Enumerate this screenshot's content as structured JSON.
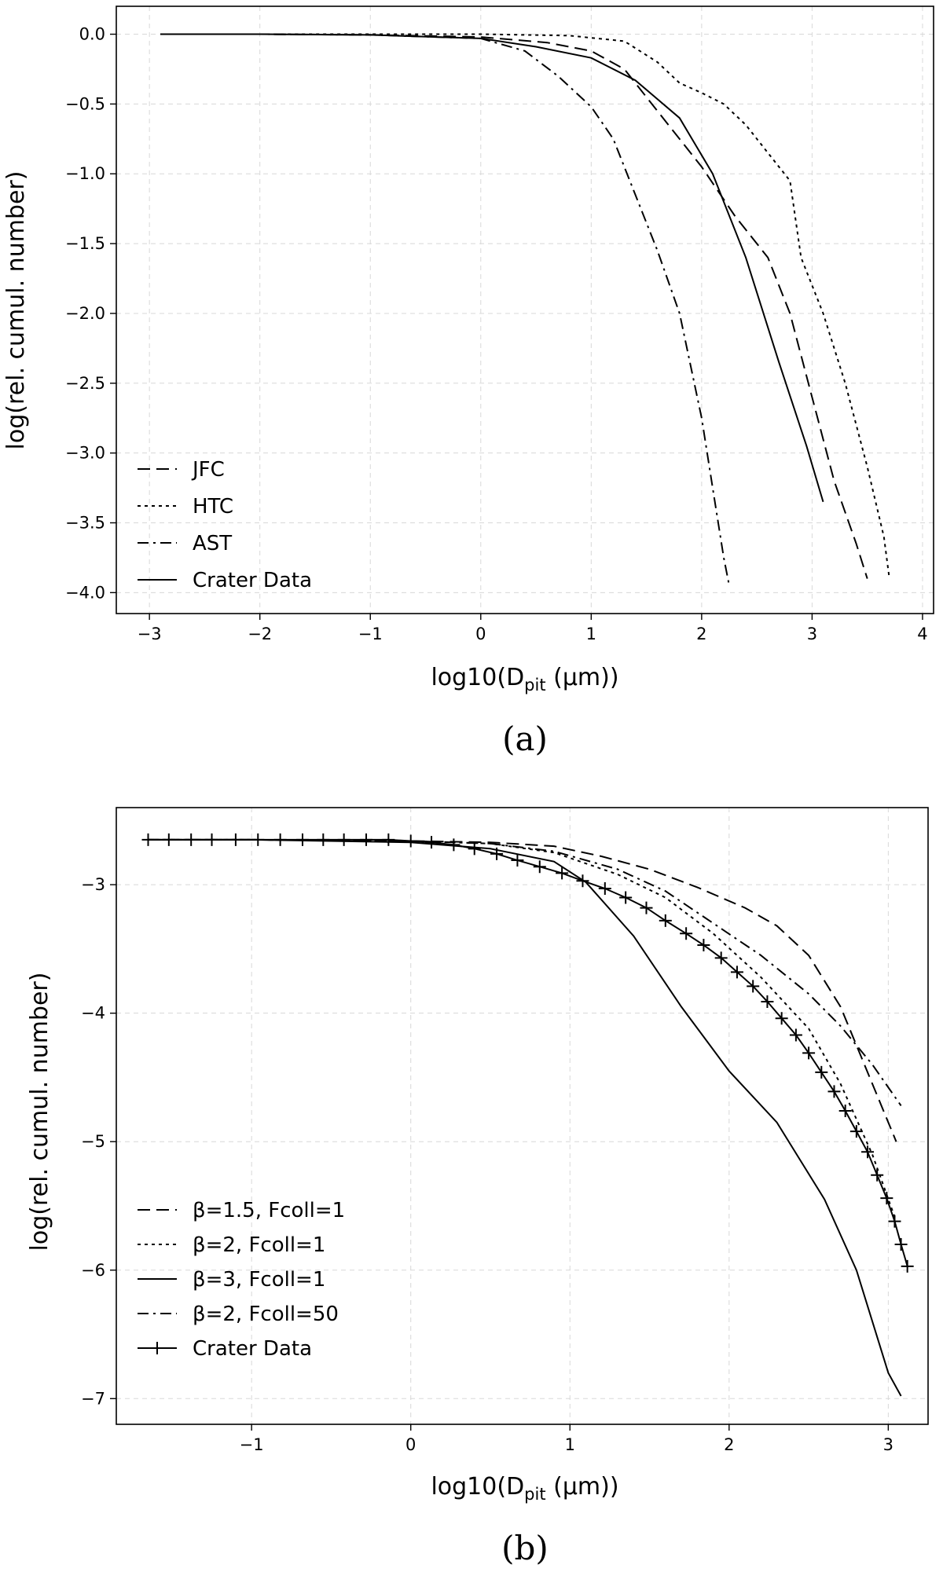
{
  "chart_data": [
    {
      "type": "line",
      "panel": "a",
      "caption": "(a)",
      "xlabel": "log10(D",
      "xlabel_sub": "pit",
      "xlabel_suffix": " (μm))",
      "ylabel": "log(rel. cumul. number)",
      "xlim": [
        -3.3,
        4.1
      ],
      "ylim": [
        -4.15,
        0.2
      ],
      "grid": true,
      "legend_position": "bottom-left",
      "x_ticks": [
        -3,
        -2,
        -1,
        0,
        1,
        2,
        3,
        4
      ],
      "x_tick_labels": [
        "−3",
        "−2",
        "−1",
        "0",
        "1",
        "2",
        "3",
        "4"
      ],
      "y_ticks": [
        0.0,
        -0.5,
        -1.0,
        -1.5,
        -2.0,
        -2.5,
        -3.0,
        -3.5,
        -4.0
      ],
      "y_tick_labels": [
        "0.0",
        "−0.5",
        "−1.0",
        "−1.5",
        "−2.0",
        "−2.5",
        "−3.0",
        "−3.5",
        "−4.0"
      ],
      "series": [
        {
          "name": "JFC",
          "style": "dashed",
          "x": [
            -2.9,
            -2.0,
            -1.0,
            0.0,
            0.6,
            1.0,
            1.3,
            1.6,
            2.0,
            2.3,
            2.6,
            2.8,
            3.0,
            3.2,
            3.4,
            3.5
          ],
          "y": [
            0.0,
            0.0,
            -0.005,
            -0.02,
            -0.06,
            -0.12,
            -0.25,
            -0.55,
            -0.95,
            -1.3,
            -1.6,
            -2.0,
            -2.6,
            -3.2,
            -3.65,
            -3.9
          ]
        },
        {
          "name": "HTC",
          "style": "dotted",
          "x": [
            -2.9,
            -2.0,
            -1.0,
            0.0,
            0.8,
            1.3,
            1.6,
            1.8,
            2.0,
            2.2,
            2.4,
            2.6,
            2.8,
            2.9,
            3.1,
            3.3,
            3.5,
            3.65,
            3.7
          ],
          "y": [
            0.0,
            0.0,
            0.0,
            0.0,
            -0.01,
            -0.05,
            -0.2,
            -0.35,
            -0.42,
            -0.5,
            -0.65,
            -0.85,
            -1.05,
            -1.6,
            -2.0,
            -2.5,
            -3.1,
            -3.6,
            -3.9
          ]
        },
        {
          "name": "AST",
          "style": "dashdot",
          "x": [
            -2.9,
            -2.0,
            -1.0,
            0.0,
            0.4,
            0.7,
            1.0,
            1.2,
            1.4,
            1.6,
            1.8,
            2.0,
            2.1,
            2.2,
            2.25
          ],
          "y": [
            0.0,
            0.0,
            -0.005,
            -0.03,
            -0.12,
            -0.3,
            -0.52,
            -0.75,
            -1.15,
            -1.55,
            -2.0,
            -2.75,
            -3.25,
            -3.75,
            -3.95
          ]
        },
        {
          "name": "Crater Data",
          "style": "solid",
          "x": [
            -2.9,
            -2.0,
            -1.0,
            0.0,
            0.5,
            1.0,
            1.4,
            1.8,
            2.1,
            2.4,
            2.7,
            2.95,
            3.1
          ],
          "y": [
            0.0,
            0.0,
            -0.005,
            -0.03,
            -0.09,
            -0.17,
            -0.33,
            -0.6,
            -1.0,
            -1.6,
            -2.35,
            -2.95,
            -3.35
          ]
        }
      ]
    },
    {
      "type": "line",
      "panel": "b",
      "caption": "(b)",
      "xlabel": "log10(D",
      "xlabel_sub": "pit",
      "xlabel_suffix": " (μm))",
      "ylabel": "log(rel. cumul. number)",
      "xlim": [
        -1.85,
        3.25
      ],
      "ylim": [
        -7.2,
        -2.4
      ],
      "grid": true,
      "legend_position": "bottom-left",
      "x_ticks": [
        -1,
        0,
        1,
        2,
        3
      ],
      "x_tick_labels": [
        "−1",
        "0",
        "1",
        "2",
        "3"
      ],
      "y_ticks": [
        -3,
        -4,
        -5,
        -6,
        -7
      ],
      "y_tick_labels": [
        "−3",
        "−4",
        "−5",
        "−6",
        "−7"
      ],
      "series": [
        {
          "name": "β=1.5, Fcoll=1",
          "style": "dashed",
          "x": [
            -1.65,
            -1.0,
            0.0,
            0.5,
            0.9,
            1.2,
            1.5,
            1.8,
            2.1,
            2.3,
            2.5,
            2.7,
            2.9,
            3.05
          ],
          "y": [
            -2.65,
            -2.65,
            -2.66,
            -2.67,
            -2.7,
            -2.78,
            -2.88,
            -3.02,
            -3.18,
            -3.32,
            -3.55,
            -3.95,
            -4.55,
            -5.0
          ]
        },
        {
          "name": "β=2, Fcoll=1",
          "style": "dotted",
          "x": [
            -1.65,
            -1.0,
            0.0,
            0.5,
            0.9,
            1.3,
            1.6,
            1.9,
            2.2,
            2.5,
            2.7,
            2.9,
            3.05
          ],
          "y": [
            -2.65,
            -2.65,
            -2.66,
            -2.68,
            -2.75,
            -2.92,
            -3.1,
            -3.38,
            -3.72,
            -4.12,
            -4.55,
            -5.1,
            -5.62
          ]
        },
        {
          "name": "β=3, Fcoll=1",
          "style": "solid",
          "x": [
            -1.65,
            -1.0,
            0.0,
            0.5,
            0.9,
            1.1,
            1.4,
            1.7,
            2.0,
            2.3,
            2.6,
            2.8,
            3.0,
            3.08
          ],
          "y": [
            -2.65,
            -2.65,
            -2.67,
            -2.72,
            -2.82,
            -2.98,
            -3.4,
            -3.95,
            -4.45,
            -4.85,
            -5.45,
            -6.0,
            -6.8,
            -6.98
          ]
        },
        {
          "name": "β=2, Fcoll=50",
          "style": "dashdot",
          "x": [
            -1.65,
            -1.0,
            0.0,
            0.5,
            0.9,
            1.3,
            1.6,
            1.9,
            2.2,
            2.5,
            2.7,
            2.9,
            3.08
          ],
          "y": [
            -2.65,
            -2.65,
            -2.66,
            -2.68,
            -2.74,
            -2.88,
            -3.05,
            -3.3,
            -3.55,
            -3.85,
            -4.1,
            -4.4,
            -4.72
          ]
        },
        {
          "name": "Crater Data",
          "style": "solid-markers",
          "x": [
            -1.65,
            -1.52,
            -1.38,
            -1.25,
            -1.1,
            -0.96,
            -0.82,
            -0.68,
            -0.55,
            -0.42,
            -0.28,
            -0.14,
            0.0,
            0.13,
            0.27,
            0.4,
            0.54,
            0.67,
            0.81,
            0.95,
            1.08,
            1.22,
            1.35,
            1.48,
            1.6,
            1.73,
            1.84,
            1.95,
            2.05,
            2.15,
            2.24,
            2.33,
            2.42,
            2.5,
            2.58,
            2.66,
            2.73,
            2.8,
            2.87,
            2.93,
            2.99,
            3.04,
            3.08,
            3.12
          ],
          "y": [
            -2.65,
            -2.65,
            -2.65,
            -2.65,
            -2.65,
            -2.65,
            -2.65,
            -2.65,
            -2.65,
            -2.65,
            -2.65,
            -2.65,
            -2.66,
            -2.67,
            -2.69,
            -2.72,
            -2.76,
            -2.81,
            -2.86,
            -2.91,
            -2.97,
            -3.03,
            -3.1,
            -3.18,
            -3.28,
            -3.38,
            -3.47,
            -3.57,
            -3.68,
            -3.79,
            -3.91,
            -4.04,
            -4.17,
            -4.31,
            -4.46,
            -4.61,
            -4.76,
            -4.92,
            -5.08,
            -5.26,
            -5.44,
            -5.62,
            -5.8,
            -5.97
          ]
        }
      ]
    }
  ]
}
